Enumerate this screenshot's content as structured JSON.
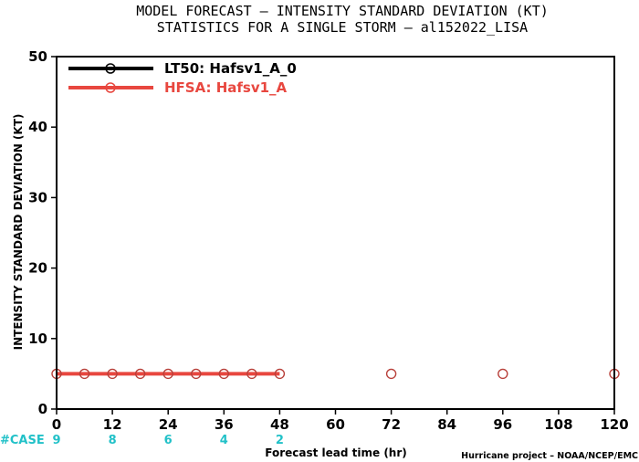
{
  "chart_data": {
    "type": "line",
    "title_line1": "MODEL FORECAST – INTENSITY STANDARD DEVIATION (KT)",
    "title_line2": "STATISTICS FOR A SINGLE STORM – al152022_LISA",
    "xlabel": "Forecast lead time (hr)",
    "ylabel": "INTENSITY STANDARD DEVIATION (KT)",
    "xlim": [
      0,
      120
    ],
    "ylim": [
      0,
      50
    ],
    "x_ticks": [
      0,
      12,
      24,
      36,
      48,
      60,
      72,
      84,
      96,
      108,
      120
    ],
    "y_ticks": [
      0,
      10,
      20,
      30,
      40,
      50
    ],
    "legend_position": "top-left",
    "series": [
      {
        "name": "LT50: Hafsv1_A_0",
        "color": "#000000",
        "x": [],
        "y": []
      },
      {
        "name": "HFSA: Hafsv1_A",
        "color": "#e8473f",
        "x": [
          0,
          6,
          12,
          18,
          24,
          30,
          36,
          42,
          48,
          72,
          96,
          120
        ],
        "y": [
          5,
          5,
          5,
          5,
          5,
          5,
          5,
          5,
          5,
          5,
          5,
          5
        ]
      }
    ],
    "case_label": "#CASE",
    "case_counts": [
      {
        "x": 0,
        "label": "9"
      },
      {
        "x": 12,
        "label": "8"
      },
      {
        "x": 24,
        "label": "6"
      },
      {
        "x": 36,
        "label": "4"
      },
      {
        "x": 48,
        "label": "2"
      }
    ],
    "credit": "Hurricane project – NOAA/NCEP/EMC"
  }
}
